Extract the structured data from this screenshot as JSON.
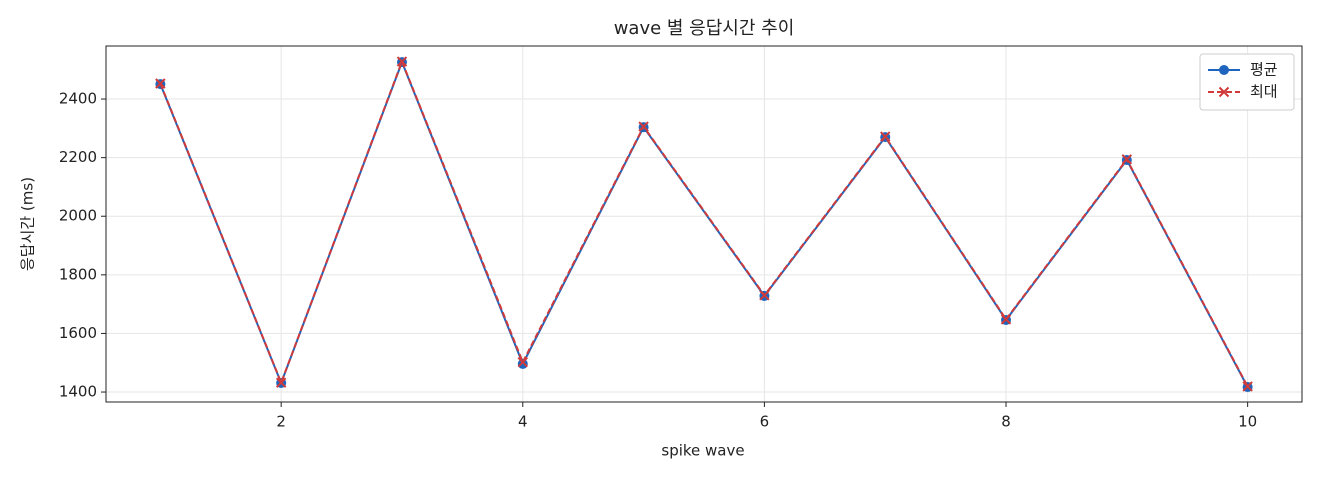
{
  "chart_data": {
    "type": "line",
    "title": "wave 별 응답시간 추이",
    "x_label": "spike wave",
    "y_label": "응답시간 (ms)",
    "x": [
      1,
      2,
      3,
      4,
      5,
      6,
      7,
      8,
      9,
      10
    ],
    "series": [
      {
        "name": "평균",
        "color": "#1f65bd",
        "marker": "circle",
        "dash": false,
        "values": [
          2451,
          1431,
          2526,
          1496,
          2304,
          1728,
          2270,
          1646,
          2192,
          1417
        ]
      },
      {
        "name": "최대",
        "color": "#d03a3a",
        "marker": "x",
        "dash": true,
        "values": [
          2453,
          1432,
          2528,
          1502,
          2306,
          1730,
          2272,
          1648,
          2194,
          1419
        ]
      }
    ],
    "xlim": [
      0.55,
      10.45
    ],
    "xticks": [
      2,
      4,
      6,
      8,
      10
    ],
    "ylim": [
      1366,
      2581
    ],
    "yticks": [
      1400,
      1600,
      1800,
      2000,
      2200,
      2400
    ],
    "grid": true,
    "legend": "upper right"
  }
}
